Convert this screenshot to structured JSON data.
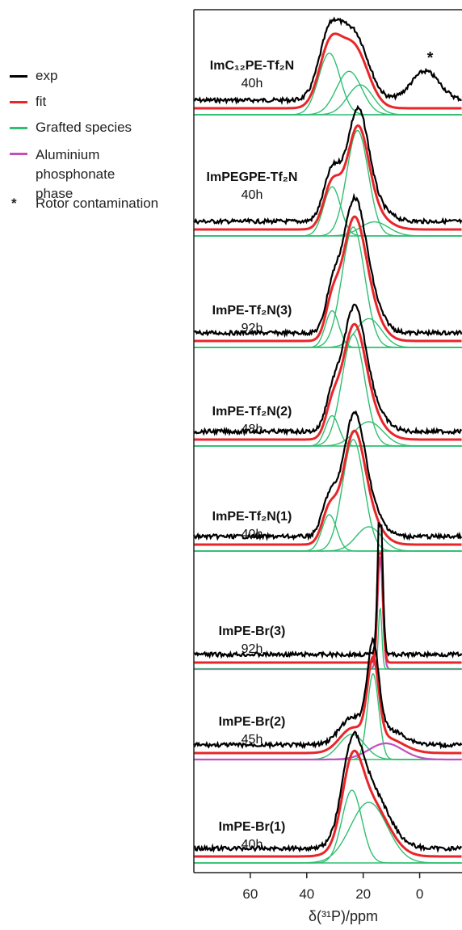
{
  "legend": [
    {
      "label": "exp",
      "color": "#000000",
      "marker": "line"
    },
    {
      "label": "fit",
      "color": "#e8262a",
      "marker": "line"
    },
    {
      "label": "Grafted species",
      "color": "#2fbf71",
      "marker": "line"
    },
    {
      "label": "Aluminium\nphosphonate phase",
      "color": "#c050c0",
      "marker": "line"
    },
    {
      "label": "Rotor contamination",
      "color": "#000000",
      "marker": "star"
    }
  ],
  "chart_data": {
    "type": "line",
    "xlabel": "δ(³¹P)/ppm",
    "xlim": [
      80,
      -15
    ],
    "xticks": [
      60,
      40,
      20,
      0
    ],
    "grid": false,
    "spectra": [
      {
        "name": "ImC₁₂PE-Tf₂N",
        "time": "40h",
        "components": [
          {
            "type": "grafted",
            "center": 32,
            "width": 3.8,
            "height": 0.68
          },
          {
            "type": "grafted",
            "center": 25,
            "width": 4.5,
            "height": 0.48
          },
          {
            "type": "grafted",
            "center": 21,
            "width": 4.5,
            "height": 0.33
          }
        ],
        "contamination": {
          "center": -2,
          "width": 5,
          "height": 0.32,
          "label": "*"
        }
      },
      {
        "name": "ImPEGPE-Tf₂N",
        "time": "40h",
        "components": [
          {
            "type": "grafted",
            "center": 31,
            "width": 3.0,
            "height": 0.42
          },
          {
            "type": "grafted",
            "center": 22,
            "width": 3.8,
            "height": 0.9
          },
          {
            "type": "grafted",
            "center": 16,
            "width": 5.0,
            "height": 0.12
          }
        ]
      },
      {
        "name": "ImPE-Tf₂N(3)",
        "time": "92h",
        "components": [
          {
            "type": "grafted",
            "center": 31,
            "width": 2.4,
            "height": 0.28
          },
          {
            "type": "grafted",
            "center": 23.5,
            "width": 4.0,
            "height": 0.92
          },
          {
            "type": "grafted",
            "center": 18,
            "width": 4.5,
            "height": 0.22
          }
        ]
      },
      {
        "name": "ImPE-Tf₂N(2)",
        "time": "48h",
        "components": [
          {
            "type": "grafted",
            "center": 31,
            "width": 2.4,
            "height": 0.25
          },
          {
            "type": "grafted",
            "center": 23.5,
            "width": 4.0,
            "height": 0.92
          },
          {
            "type": "grafted",
            "center": 18,
            "width": 5.0,
            "height": 0.2
          }
        ]
      },
      {
        "name": "ImPE-Tf₂N(1)",
        "time": "40h",
        "components": [
          {
            "type": "grafted",
            "center": 32,
            "width": 2.6,
            "height": 0.3
          },
          {
            "type": "grafted",
            "center": 23.5,
            "width": 3.8,
            "height": 0.92
          },
          {
            "type": "grafted",
            "center": 18,
            "width": 4.5,
            "height": 0.2
          }
        ]
      },
      {
        "name": "ImPE-Br(3)",
        "time": "92h",
        "components": [
          {
            "type": "aluminium",
            "center": 14,
            "width": 0.9,
            "height": 1.0
          },
          {
            "type": "grafted",
            "center": 14,
            "width": 0.6,
            "height": 0.55
          }
        ]
      },
      {
        "name": "ImPE-Br(2)",
        "time": "45h",
        "components": [
          {
            "type": "grafted",
            "center": 24,
            "width": 4.5,
            "height": 0.25
          },
          {
            "type": "grafted",
            "center": 16.5,
            "width": 2.0,
            "height": 0.85
          },
          {
            "type": "aluminium",
            "center": 12,
            "width": 6,
            "height": 0.16
          }
        ]
      },
      {
        "name": "ImPE-Br(1)",
        "time": "40h",
        "components": [
          {
            "type": "grafted",
            "center": 24,
            "width": 3.5,
            "height": 0.6
          },
          {
            "type": "grafted",
            "center": 18,
            "width": 6.5,
            "height": 0.5
          }
        ]
      }
    ]
  }
}
